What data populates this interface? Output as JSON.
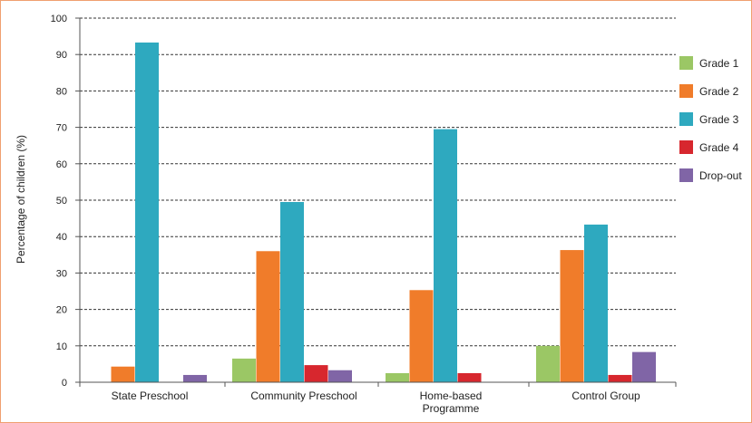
{
  "chart_data": {
    "type": "bar",
    "title": "",
    "xlabel": "",
    "ylabel": "Percentage of children (%)",
    "ylim": [
      0,
      100
    ],
    "yticks": [
      0,
      10,
      20,
      30,
      40,
      50,
      60,
      70,
      80,
      90,
      100
    ],
    "grid": true,
    "legend_position": "right",
    "categories": [
      [
        "State Preschool"
      ],
      [
        "Community Preschool"
      ],
      [
        "Home-based",
        "Programme"
      ],
      [
        "Control Group"
      ]
    ],
    "series": [
      {
        "name": "Grade 1",
        "color": "#9bc765",
        "values": [
          0,
          6.5,
          2.5,
          10
        ]
      },
      {
        "name": "Grade 2",
        "color": "#f07c2a",
        "values": [
          4.3,
          36,
          25.3,
          36.3
        ]
      },
      {
        "name": "Grade 3",
        "color": "#2ea9bf",
        "values": [
          93.3,
          49.5,
          69.5,
          43.3
        ]
      },
      {
        "name": "Grade 4",
        "color": "#d7272e",
        "values": [
          0,
          4.7,
          2.5,
          2.0
        ]
      },
      {
        "name": "Drop-out",
        "color": "#8065a6",
        "values": [
          2.0,
          3.3,
          0,
          8.3
        ]
      }
    ]
  }
}
